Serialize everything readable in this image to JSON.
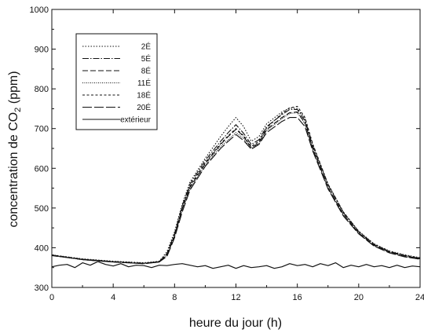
{
  "chart_data": {
    "type": "line",
    "title": "",
    "xlabel": "heure du jour (h)",
    "ylabel_main": "concentration de CO",
    "ylabel_sub": "2",
    "ylabel_end": " (ppm)",
    "xlim": [
      0,
      24
    ],
    "ylim": [
      300,
      1000
    ],
    "xticks": [
      0,
      4,
      8,
      12,
      16,
      20,
      24
    ],
    "yticks": [
      300,
      400,
      500,
      600,
      700,
      800,
      900,
      1000
    ],
    "grid": false,
    "legend_position": "top-left",
    "series": [
      {
        "name": "2É",
        "dash": "1.5,2",
        "x": [
          0,
          2,
          4,
          6,
          7,
          7.5,
          8,
          8.5,
          9,
          10,
          11,
          11.5,
          12,
          12.5,
          13,
          13.5,
          14,
          15,
          15.5,
          16,
          16.5,
          17,
          18,
          19,
          20,
          21,
          22,
          23,
          24
        ],
        "y": [
          382,
          372,
          366,
          362,
          366,
          390,
          440,
          510,
          565,
          625,
          680,
          705,
          728,
          705,
          668,
          680,
          712,
          742,
          752,
          750,
          725,
          660,
          560,
          490,
          442,
          410,
          392,
          382,
          375
        ]
      },
      {
        "name": "5É",
        "dash": "8,2,1.5,2",
        "x": [
          0,
          2,
          4,
          6,
          7,
          7.5,
          8,
          8.5,
          9,
          10,
          11,
          11.5,
          12,
          12.5,
          13,
          13.5,
          14,
          15,
          15.5,
          16,
          16.5,
          17,
          18,
          19,
          20,
          21,
          22,
          23,
          24
        ],
        "y": [
          380,
          371,
          365,
          361,
          365,
          385,
          435,
          505,
          560,
          620,
          668,
          690,
          710,
          688,
          660,
          672,
          705,
          735,
          748,
          748,
          720,
          656,
          558,
          488,
          440,
          408,
          390,
          380,
          373
        ]
      },
      {
        "name": "8É",
        "dash": "7,3",
        "x": [
          0,
          2,
          4,
          6,
          7,
          7.5,
          8,
          8.5,
          9,
          10,
          11,
          11.5,
          12,
          12.5,
          13,
          13.5,
          14,
          15,
          15.5,
          16,
          16.5,
          17,
          18,
          19,
          20,
          21,
          22,
          23,
          24
        ],
        "y": [
          381,
          370,
          364,
          360,
          364,
          382,
          430,
          498,
          552,
          612,
          660,
          680,
          698,
          680,
          652,
          664,
          698,
          728,
          740,
          742,
          715,
          650,
          552,
          484,
          437,
          406,
          389,
          379,
          372
        ]
      },
      {
        "name": "11É",
        "dash": "1,1.5",
        "x": [
          0,
          2,
          4,
          6,
          7,
          7.5,
          8,
          8.5,
          9,
          10,
          11,
          11.5,
          12,
          12.5,
          13,
          13.5,
          14,
          15,
          15.5,
          16,
          16.5,
          17,
          18,
          19,
          20,
          21,
          22,
          23,
          24
        ],
        "y": [
          380,
          370,
          364,
          360,
          364,
          380,
          428,
          495,
          548,
          608,
          655,
          672,
          690,
          675,
          650,
          662,
          695,
          725,
          738,
          740,
          712,
          648,
          550,
          482,
          436,
          405,
          388,
          378,
          372
        ]
      },
      {
        "name": "18É",
        "dash": "3,2.5",
        "x": [
          0,
          2,
          4,
          6,
          7,
          7.5,
          8,
          8.5,
          9,
          10,
          11,
          11.5,
          12,
          12.5,
          13,
          13.5,
          14,
          15,
          15.5,
          16,
          16.5,
          17,
          18,
          19,
          20,
          21,
          22,
          23,
          24
        ],
        "y": [
          382,
          371,
          365,
          361,
          365,
          384,
          432,
          500,
          555,
          615,
          662,
          682,
          700,
          682,
          655,
          668,
          702,
          738,
          752,
          756,
          728,
          662,
          560,
          490,
          441,
          409,
          391,
          381,
          374
        ]
      },
      {
        "name": "20É",
        "dash": "12,3",
        "x": [
          0,
          2,
          4,
          6,
          7,
          7.5,
          8,
          8.5,
          9,
          10,
          11,
          11.5,
          12,
          12.5,
          13,
          13.5,
          14,
          15,
          15.5,
          16,
          16.5,
          17,
          18,
          19,
          20,
          21,
          22,
          23,
          24
        ],
        "y": [
          381,
          370,
          364,
          360,
          364,
          378,
          425,
          490,
          545,
          605,
          650,
          668,
          685,
          670,
          648,
          660,
          690,
          718,
          728,
          728,
          705,
          644,
          548,
          480,
          435,
          404,
          387,
          377,
          371
        ]
      },
      {
        "name": "extérieur",
        "dash": "",
        "x": [
          0,
          0.5,
          1,
          1.5,
          2,
          2.5,
          3,
          3.5,
          4,
          4.5,
          5,
          5.5,
          6,
          6.5,
          7,
          7.5,
          8,
          8.5,
          9,
          9.5,
          10,
          10.5,
          11,
          11.5,
          12,
          12.5,
          13,
          13.5,
          14,
          14.5,
          15,
          15.5,
          16,
          16.5,
          17,
          17.5,
          18,
          18.5,
          19,
          19.5,
          20,
          20.5,
          21,
          21.5,
          22,
          22.5,
          23,
          23.5,
          24
        ],
        "y": [
          352,
          356,
          358,
          350,
          362,
          356,
          365,
          358,
          354,
          360,
          352,
          356,
          355,
          350,
          356,
          355,
          358,
          360,
          356,
          352,
          355,
          348,
          352,
          356,
          348,
          355,
          350,
          352,
          355,
          348,
          352,
          360,
          355,
          358,
          352,
          360,
          355,
          362,
          350,
          356,
          352,
          358,
          352,
          355,
          350,
          356,
          350,
          354,
          352
        ]
      }
    ]
  }
}
